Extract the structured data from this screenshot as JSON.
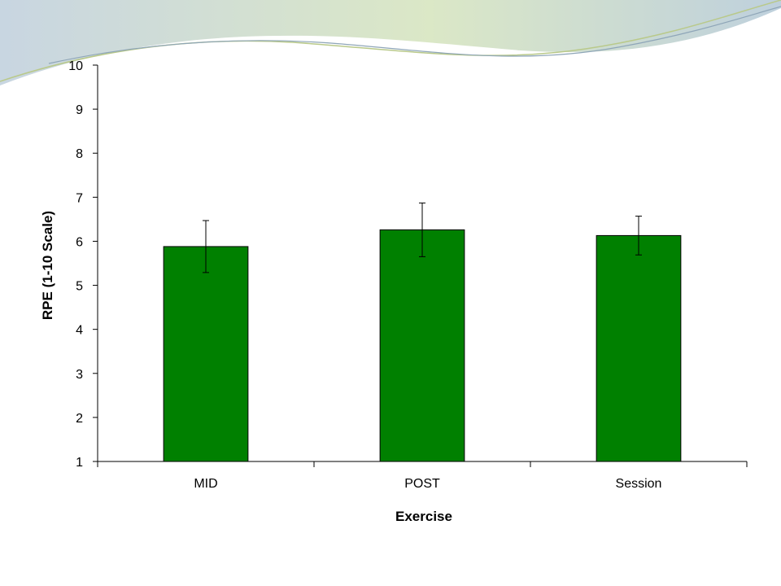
{
  "chart_data": {
    "type": "bar",
    "title": "",
    "xlabel": "Exercise",
    "ylabel": "RPE (1-10 Scale)",
    "categories": [
      "MID",
      "POST",
      "Session"
    ],
    "series": [
      {
        "values": [
          5.88,
          6.26,
          6.13
        ],
        "error": [
          0.59,
          0.61,
          0.44
        ]
      }
    ],
    "ylim": [
      1,
      10
    ],
    "yticks": [
      1,
      2,
      3,
      4,
      5,
      6,
      7,
      8,
      9,
      10
    ],
    "grid": false,
    "legend": "none",
    "colors": {
      "bar": "#008000",
      "bar_stroke": "#000000"
    }
  },
  "theme": {
    "wave_colors": [
      "#c9d7e3",
      "#dfe9b8",
      "#9fb7c8"
    ]
  }
}
